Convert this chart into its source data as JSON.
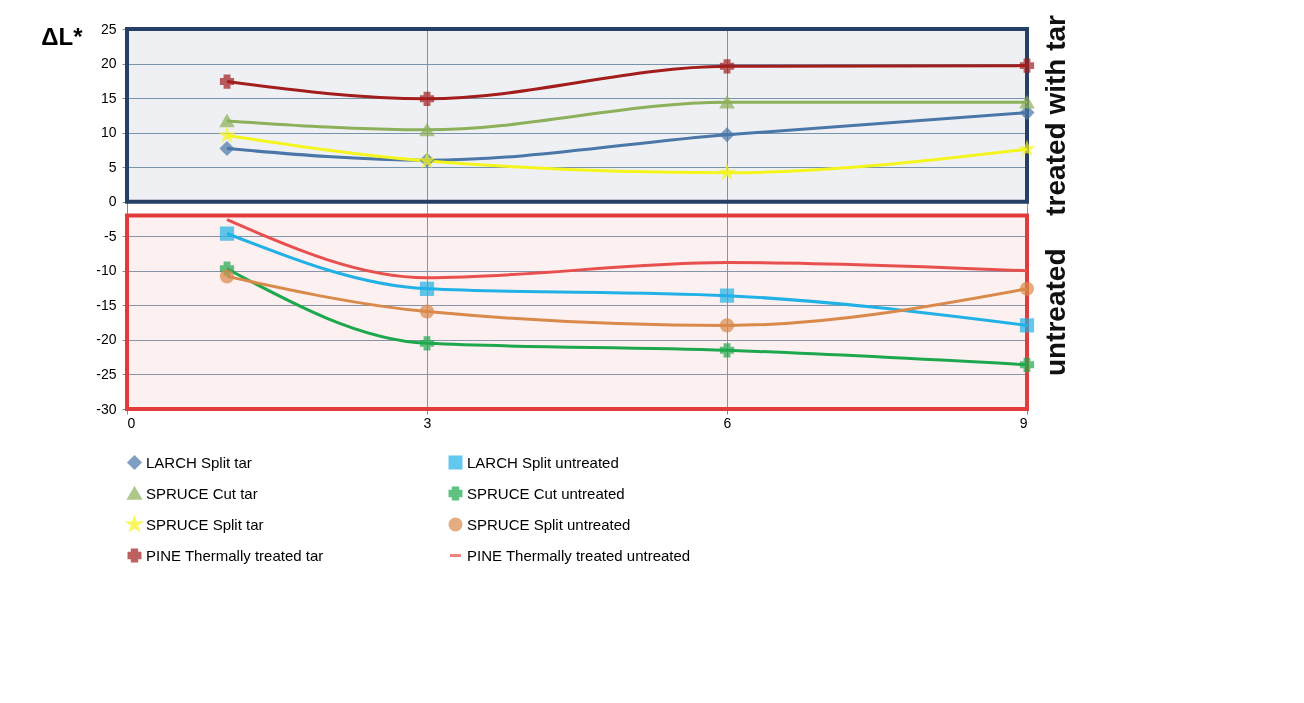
{
  "chart_data": {
    "type": "line",
    "ylabel": "ΔL*",
    "x": [
      1,
      3,
      6,
      9
    ],
    "xlim": [
      0,
      9
    ],
    "xticks": [
      0,
      3,
      6,
      9
    ],
    "ylim": [
      -30,
      25
    ],
    "yticks": [
      -30,
      -25,
      -20,
      -15,
      -10,
      -5,
      0,
      5,
      10,
      15,
      20,
      25
    ],
    "grid": true,
    "legend": "bottom",
    "line_style": "solid",
    "series": [
      {
        "name": "LARCH Split tar",
        "color": "#4a76a8",
        "marker": "diamond",
        "values": [
          7.7,
          6.0,
          9.7,
          12.9
        ]
      },
      {
        "name": "LARCH Split untreated",
        "color": "#21b1e6",
        "marker": "square",
        "values": [
          -4.6,
          -12.6,
          -13.6,
          -17.9
        ]
      },
      {
        "name": "SPRUCE Cut tar",
        "color": "#8db05a",
        "marker": "triangle",
        "values": [
          11.7,
          10.4,
          14.4,
          14.4
        ]
      },
      {
        "name": "SPRUCE Cut untreated",
        "color": "#1ea84e",
        "marker": "cross",
        "values": [
          -9.7,
          -20.5,
          -21.5,
          -23.6
        ]
      },
      {
        "name": "SPRUCE Split tar",
        "color": "#f5f51e",
        "marker": "star",
        "values": [
          9.6,
          5.9,
          4.2,
          7.6
        ]
      },
      {
        "name": "SPRUCE Split untreated",
        "color": "#d9894a",
        "marker": "circle",
        "values": [
          -10.8,
          -15.9,
          -17.9,
          -12.6
        ]
      },
      {
        "name": "PINE Thermally treated tar",
        "color": "#a31d1d",
        "marker": "cross",
        "values": [
          17.4,
          14.9,
          19.6,
          19.7
        ]
      },
      {
        "name": "PINE Thermally treated untreated",
        "color": "#e8504f",
        "marker": "none",
        "values": [
          -2.6,
          -11.0,
          -8.8,
          -10.0
        ]
      }
    ],
    "bands": [
      {
        "axis": "y",
        "from": 0,
        "to": 25,
        "label": "treated with tar",
        "color": "#253f66"
      },
      {
        "axis": "y",
        "from": -30,
        "to": -2,
        "label": "untreated",
        "color": "#e23b3b"
      }
    ]
  }
}
